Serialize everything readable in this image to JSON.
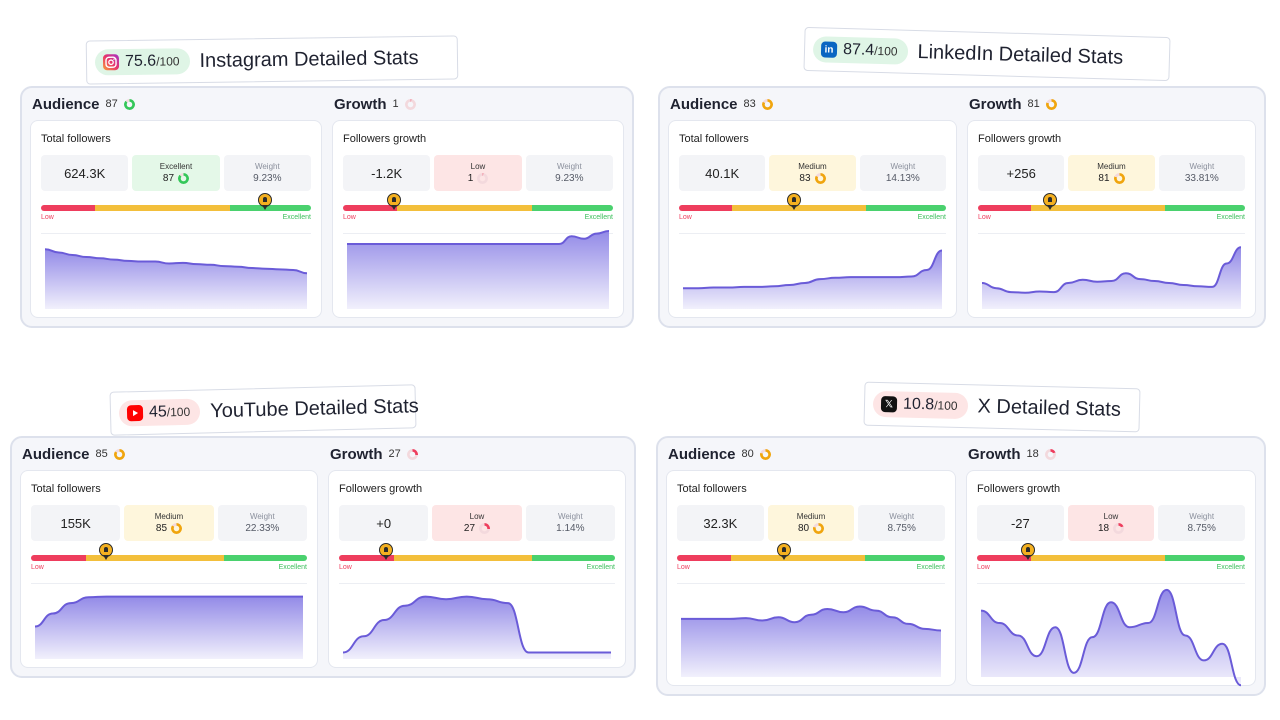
{
  "colors": {
    "low": "#ee3d5d",
    "medium": "#f3bf3b",
    "excellent": "#4ad16e",
    "chart_fill": "#8d84e6",
    "chart_line": "#6a5bd8"
  },
  "scale_labels": {
    "low": "Low",
    "high": "Excellent"
  },
  "weight_label": "Weight",
  "panels": [
    {
      "id": "instagram",
      "logo_icon": "instagram-icon",
      "score": "75.6",
      "score_max": "/100",
      "title": "Instagram Detailed Stats",
      "badge_color": "#dff5e6",
      "audience": {
        "label": "Audience",
        "score": "87",
        "ring_color": "#34c759",
        "ring_pct": 0.87,
        "card_title": "Total followers",
        "value": "624.3K",
        "rating": "Excellent",
        "rating_color": "#e4f8e8",
        "rating_score": "87",
        "weight": "9.23%",
        "marker": 0.83,
        "series": [
          0.92,
          0.87,
          0.83,
          0.8,
          0.78,
          0.76,
          0.74,
          0.73,
          0.73,
          0.7,
          0.71,
          0.69,
          0.68,
          0.66,
          0.65,
          0.63,
          0.62,
          0.61,
          0.6,
          0.55
        ]
      },
      "growth": {
        "label": "Growth",
        "score": "1",
        "ring_color": "#f28a9b",
        "ring_pct": 0.03,
        "card_title": "Followers growth",
        "value": "-1.2K",
        "rating": "Low",
        "rating_color": "#fde5e5",
        "rating_score": "1",
        "weight": "9.23%",
        "marker": 0.19,
        "series": [
          1.0,
          1.0,
          1.0,
          1.0,
          1.0,
          1.0,
          1.0,
          1.0,
          1.0,
          1.0,
          1.0,
          1.0,
          1.0,
          1.0,
          1.0,
          1.0,
          1.0,
          1.0,
          1.12,
          1.08,
          1.16,
          1.2
        ]
      }
    },
    {
      "id": "linkedin",
      "logo_icon": "linkedin-icon",
      "score": "87.4",
      "score_max": "/100",
      "title": "LinkedIn Detailed Stats",
      "badge_color": "#dff5e6",
      "audience": {
        "label": "Audience",
        "score": "83",
        "ring_color": "#f0a50e",
        "ring_pct": 0.83,
        "card_title": "Total followers",
        "value": "40.1K",
        "rating": "Medium",
        "rating_color": "#fef6dc",
        "rating_score": "83",
        "weight": "14.13%",
        "marker": 0.43,
        "series": [
          0.32,
          0.32,
          0.33,
          0.33,
          0.34,
          0.34,
          0.35,
          0.37,
          0.4,
          0.46,
          0.48,
          0.49,
          0.49,
          0.49,
          0.49,
          0.5,
          0.6,
          0.9
        ]
      },
      "growth": {
        "label": "Growth",
        "score": "81",
        "ring_color": "#f0a50e",
        "ring_pct": 0.81,
        "card_title": "Followers growth",
        "value": "+256",
        "rating": "Medium",
        "rating_color": "#fef6dc",
        "rating_score": "81",
        "weight": "33.81%",
        "marker": 0.27,
        "series": [
          0.4,
          0.32,
          0.26,
          0.25,
          0.27,
          0.26,
          0.4,
          0.45,
          0.42,
          0.43,
          0.55,
          0.46,
          0.43,
          0.4,
          0.37,
          0.35,
          0.34,
          0.7,
          0.95
        ]
      }
    },
    {
      "id": "youtube",
      "logo_icon": "youtube-icon",
      "score": "45",
      "score_max": "/100",
      "title": "YouTube Detailed Stats",
      "badge_color": "#fde5e5",
      "audience": {
        "label": "Audience",
        "score": "85",
        "ring_color": "#f0a50e",
        "ring_pct": 0.85,
        "card_title": "Total followers",
        "value": "155K",
        "rating": "Medium",
        "rating_color": "#fef6dc",
        "rating_score": "85",
        "weight": "22.33%",
        "marker": 0.27,
        "series": [
          0.5,
          0.7,
          0.86,
          0.95,
          0.96,
          0.96,
          0.96,
          0.96,
          0.96,
          0.96,
          0.96,
          0.96,
          0.96,
          0.96,
          0.96,
          0.96
        ]
      },
      "growth": {
        "label": "Growth",
        "score": "27",
        "ring_color": "#ee3d5d",
        "ring_pct": 0.27,
        "card_title": "Followers growth",
        "value": "+0",
        "rating": "Low",
        "rating_color": "#fde5e5",
        "rating_score": "27",
        "weight": "1.14%",
        "marker": 0.17,
        "series": [
          0.1,
          0.35,
          0.6,
          0.82,
          0.96,
          0.92,
          0.96,
          0.92,
          0.86,
          0.1,
          0.1,
          0.1,
          0.1,
          0.1
        ]
      }
    },
    {
      "id": "x",
      "logo_icon": "x-icon",
      "score": "10.8",
      "score_max": "/100",
      "title": "X Detailed Stats",
      "badge_color": "#fde5e5",
      "audience": {
        "label": "Audience",
        "score": "80",
        "ring_color": "#f0a50e",
        "ring_pct": 0.8,
        "card_title": "Total followers",
        "value": "32.3K",
        "rating": "Medium",
        "rating_color": "#fef6dc",
        "rating_score": "80",
        "weight": "8.75%",
        "marker": 0.4,
        "series": [
          0.7,
          0.7,
          0.7,
          0.7,
          0.71,
          0.68,
          0.72,
          0.66,
          0.75,
          0.82,
          0.78,
          0.85,
          0.8,
          0.72,
          0.64,
          0.58,
          0.56
        ]
      },
      "growth": {
        "label": "Growth",
        "score": "18",
        "ring_color": "#ee3d5d",
        "ring_pct": 0.18,
        "card_title": "Followers growth",
        "value": "-27",
        "rating": "Low",
        "rating_color": "#fde5e5",
        "rating_score": "18",
        "weight": "8.75%",
        "marker": 0.19,
        "series": [
          0.8,
          0.65,
          0.5,
          0.25,
          0.6,
          0.05,
          0.48,
          0.9,
          0.6,
          0.65,
          1.05,
          0.5,
          0.2,
          0.4,
          -0.1
        ]
      }
    }
  ]
}
